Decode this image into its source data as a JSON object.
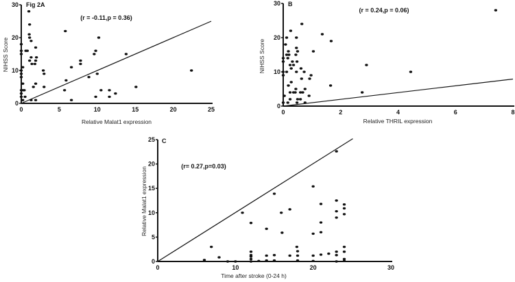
{
  "chart_data": [
    {
      "type": "scatter",
      "title": "Fig 2A",
      "annotation": "(r = -0.11,p = 0.36)",
      "xlabel": "Relative Malat1 expression",
      "ylabel": "NIHSS Score",
      "xlim": [
        0,
        25
      ],
      "ylim": [
        0,
        30
      ],
      "xticks": [
        0,
        5,
        10,
        15,
        20,
        25
      ],
      "yticks": [
        0,
        10,
        20,
        30
      ],
      "grid": false,
      "fit_line": [
        [
          0,
          0
        ],
        [
          25,
          25
        ]
      ],
      "points": [
        [
          1,
          28
        ],
        [
          1.1,
          24
        ],
        [
          1.05,
          21
        ],
        [
          1.1,
          20
        ],
        [
          1.3,
          19
        ],
        [
          0,
          18
        ],
        [
          0.6,
          16
        ],
        [
          0.8,
          16
        ],
        [
          0,
          16
        ],
        [
          1.9,
          17
        ],
        [
          0,
          15
        ],
        [
          1.3,
          14
        ],
        [
          2,
          14
        ],
        [
          1.1,
          13
        ],
        [
          1.9,
          13
        ],
        [
          1.4,
          12
        ],
        [
          1.8,
          12
        ],
        [
          0.2,
          11
        ],
        [
          0,
          10
        ],
        [
          2.9,
          10
        ],
        [
          3,
          9
        ],
        [
          0,
          9
        ],
        [
          0,
          8
        ],
        [
          0.2,
          6
        ],
        [
          1.9,
          6
        ],
        [
          1.6,
          5
        ],
        [
          3,
          5
        ],
        [
          0,
          4
        ],
        [
          0.2,
          4
        ],
        [
          0.4,
          4
        ],
        [
          0,
          3
        ],
        [
          0.5,
          2
        ],
        [
          0,
          2
        ],
        [
          0.2,
          1
        ],
        [
          1.3,
          1
        ],
        [
          1.9,
          1
        ],
        [
          5.8,
          22
        ],
        [
          10.2,
          20
        ],
        [
          9.8,
          16
        ],
        [
          9.6,
          15
        ],
        [
          7.8,
          13
        ],
        [
          7.8,
          12
        ],
        [
          13.8,
          15
        ],
        [
          6.6,
          11
        ],
        [
          10,
          9
        ],
        [
          5.9,
          7
        ],
        [
          8.9,
          8
        ],
        [
          5.7,
          4
        ],
        [
          22.4,
          10
        ],
        [
          10.5,
          4
        ],
        [
          11.6,
          4
        ],
        [
          9.8,
          2
        ],
        [
          11.6,
          2
        ],
        [
          12.4,
          3
        ],
        [
          15.1,
          5
        ],
        [
          6.6,
          1
        ]
      ]
    },
    {
      "type": "scatter",
      "title": "B",
      "annotation": "(r = 0.24,p = 0.06)",
      "xlabel": "Relative THRIL expression",
      "ylabel": "NIHSS Score",
      "xlim": [
        0,
        8
      ],
      "ylim": [
        0,
        30
      ],
      "xticks": [
        0,
        2,
        4,
        6,
        8
      ],
      "yticks": [
        0,
        10,
        20,
        30
      ],
      "grid": false,
      "fit_line": [
        [
          0,
          0
        ],
        [
          8,
          7.9
        ]
      ],
      "points": [
        [
          7.4,
          28
        ],
        [
          0.65,
          24
        ],
        [
          0.26,
          22
        ],
        [
          1.36,
          21
        ],
        [
          0.12,
          20
        ],
        [
          0.46,
          20
        ],
        [
          1.67,
          19
        ],
        [
          0.08,
          18
        ],
        [
          0.46,
          17
        ],
        [
          0.18,
          16
        ],
        [
          0.5,
          16
        ],
        [
          1.05,
          16
        ],
        [
          0.12,
          15
        ],
        [
          0.2,
          15
        ],
        [
          0.44,
          15
        ],
        [
          0,
          14
        ],
        [
          0.16,
          14
        ],
        [
          0.32,
          13
        ],
        [
          0.48,
          13
        ],
        [
          0,
          13
        ],
        [
          0.24,
          12
        ],
        [
          0.36,
          12
        ],
        [
          2.9,
          12
        ],
        [
          0.28,
          11
        ],
        [
          0.62,
          11
        ],
        [
          0.12,
          10
        ],
        [
          0.46,
          10
        ],
        [
          0.73,
          10
        ],
        [
          0,
          10
        ],
        [
          4.44,
          10
        ],
        [
          0.97,
          9
        ],
        [
          0,
          9
        ],
        [
          0.64,
          8
        ],
        [
          0.92,
          8
        ],
        [
          0.28,
          7
        ],
        [
          0.18,
          6
        ],
        [
          1.65,
          6
        ],
        [
          0.44,
          5
        ],
        [
          0.76,
          5
        ],
        [
          0.24,
          4
        ],
        [
          0.36,
          4
        ],
        [
          0.42,
          4
        ],
        [
          0.6,
          4
        ],
        [
          0.68,
          4
        ],
        [
          2.75,
          4
        ],
        [
          0.04,
          3
        ],
        [
          0.9,
          3
        ],
        [
          0.24,
          2
        ],
        [
          0.5,
          2
        ],
        [
          0.6,
          2
        ],
        [
          0.16,
          1
        ],
        [
          0.48,
          1
        ],
        [
          0.76,
          1
        ],
        [
          0,
          1
        ]
      ]
    },
    {
      "type": "scatter",
      "title": "C",
      "annotation": "(r= 0.27,p=0.03)",
      "xlabel": "Time after stroke (0-24 h)",
      "ylabel": "Relative Malat1 expression",
      "xlim": [
        0,
        30
      ],
      "ylim": [
        0,
        25
      ],
      "xticks": [
        0,
        10,
        20,
        30
      ],
      "yticks": [
        0,
        5,
        10,
        15,
        20,
        25
      ],
      "grid": false,
      "fit_line": [
        [
          0,
          0
        ],
        [
          25.1,
          25.2
        ]
      ],
      "points": [
        [
          23,
          22.6
        ],
        [
          20,
          15.4
        ],
        [
          15,
          13.9
        ],
        [
          23,
          12.5
        ],
        [
          21,
          11.8
        ],
        [
          24,
          11.7
        ],
        [
          24,
          10.9
        ],
        [
          17,
          10.7
        ],
        [
          10.9,
          10
        ],
        [
          15.9,
          10
        ],
        [
          23,
          10.3
        ],
        [
          23,
          9
        ],
        [
          24,
          9.7
        ],
        [
          12,
          7.9
        ],
        [
          21,
          8
        ],
        [
          14,
          6.7
        ],
        [
          16,
          5.9
        ],
        [
          20,
          5.7
        ],
        [
          21,
          6
        ],
        [
          6.9,
          3
        ],
        [
          17.9,
          3
        ],
        [
          24,
          3
        ],
        [
          12,
          2
        ],
        [
          18,
          2.1
        ],
        [
          23,
          2
        ],
        [
          24,
          2
        ],
        [
          7.9,
          0.85
        ],
        [
          12,
          1.3
        ],
        [
          12,
          1
        ],
        [
          14,
          1.2
        ],
        [
          15,
          1.3
        ],
        [
          17,
          1.2
        ],
        [
          18,
          1.2
        ],
        [
          20,
          1.2
        ],
        [
          21,
          1.4
        ],
        [
          22,
          1.6
        ],
        [
          23,
          1.3
        ],
        [
          6,
          0.3
        ],
        [
          9,
          0
        ],
        [
          10,
          0
        ],
        [
          12,
          0.5
        ],
        [
          12,
          0
        ],
        [
          13,
          0.1
        ],
        [
          14,
          0.2
        ],
        [
          15,
          0.2
        ],
        [
          18,
          0.2
        ],
        [
          20,
          0.1
        ],
        [
          23,
          0
        ],
        [
          24,
          0.5
        ],
        [
          24,
          0.1
        ]
      ]
    }
  ]
}
